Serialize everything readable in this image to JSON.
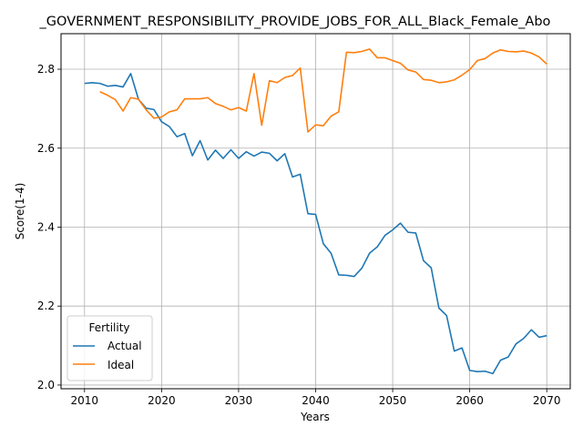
{
  "chart_data": {
    "type": "line",
    "title": "_GOVERNMENT_RESPONSIBILITY_PROVIDE_JOBS_FOR_ALL_Black_Female_Abo",
    "xlabel": "Years",
    "ylabel": "Score(1-4)",
    "xlim": [
      2006.95,
      2073.05
    ],
    "ylim": [
      1.9906,
      2.89
    ],
    "xticks": [
      2010,
      2020,
      2030,
      2040,
      2050,
      2060,
      2070
    ],
    "xtick_labels": [
      "2010",
      "2020",
      "2030",
      "2040",
      "2050",
      "2060",
      "2070"
    ],
    "yticks": [
      2.0,
      2.2,
      2.4,
      2.6,
      2.8
    ],
    "ytick_labels": [
      "2.0",
      "2.2",
      "2.4",
      "2.6",
      "2.8"
    ],
    "grid": true,
    "legend": {
      "title": "Fertility",
      "placement": "lower-left"
    },
    "series": [
      {
        "name": "Actual",
        "color": "#1f77b4",
        "x": [
          2010,
          2011,
          2012,
          2013,
          2014,
          2015,
          2016,
          2017,
          2018,
          2019,
          2020,
          2021,
          2022,
          2023,
          2024,
          2025,
          2026,
          2027,
          2028,
          2029,
          2030,
          2031,
          2032,
          2033,
          2034,
          2035,
          2036,
          2037,
          2038,
          2039,
          2040,
          2041,
          2042,
          2043,
          2044,
          2045,
          2046,
          2047,
          2048,
          2049,
          2050,
          2051,
          2052,
          2053,
          2054,
          2055,
          2056,
          2057,
          2058,
          2059,
          2060,
          2061,
          2062,
          2063,
          2064,
          2065,
          2066,
          2067,
          2068,
          2069,
          2070
        ],
        "values": [
          2.764,
          2.766,
          2.764,
          2.757,
          2.759,
          2.755,
          2.789,
          2.724,
          2.701,
          2.698,
          2.667,
          2.655,
          2.629,
          2.637,
          2.581,
          2.619,
          2.57,
          2.595,
          2.574,
          2.596,
          2.574,
          2.591,
          2.58,
          2.59,
          2.587,
          2.568,
          2.586,
          2.527,
          2.534,
          2.434,
          2.432,
          2.358,
          2.334,
          2.279,
          2.278,
          2.275,
          2.296,
          2.334,
          2.35,
          2.379,
          2.393,
          2.41,
          2.387,
          2.385,
          2.315,
          2.297,
          2.195,
          2.176,
          2.086,
          2.094,
          2.037,
          2.034,
          2.035,
          2.029,
          2.063,
          2.071,
          2.104,
          2.118,
          2.14,
          2.121,
          2.125
        ]
      },
      {
        "name": "Ideal",
        "color": "#ff7f0e",
        "x": [
          2012,
          2013,
          2014,
          2015,
          2016,
          2017,
          2018,
          2019,
          2020,
          2021,
          2022,
          2023,
          2024,
          2025,
          2026,
          2027,
          2028,
          2029,
          2030,
          2031,
          2032,
          2033,
          2034,
          2035,
          2036,
          2037,
          2038,
          2039,
          2040,
          2041,
          2042,
          2043,
          2044,
          2045,
          2046,
          2047,
          2048,
          2049,
          2050,
          2051,
          2052,
          2053,
          2054,
          2055,
          2056,
          2057,
          2058,
          2059,
          2060,
          2061,
          2062,
          2063,
          2064,
          2065,
          2066,
          2067,
          2068,
          2069,
          2070
        ],
        "values": [
          2.743,
          2.734,
          2.723,
          2.694,
          2.728,
          2.724,
          2.697,
          2.676,
          2.679,
          2.692,
          2.697,
          2.725,
          2.725,
          2.725,
          2.728,
          2.713,
          2.706,
          2.697,
          2.703,
          2.694,
          2.789,
          2.658,
          2.771,
          2.766,
          2.779,
          2.784,
          2.803,
          2.641,
          2.659,
          2.657,
          2.681,
          2.692,
          2.843,
          2.842,
          2.845,
          2.851,
          2.829,
          2.829,
          2.822,
          2.815,
          2.798,
          2.793,
          2.774,
          2.772,
          2.766,
          2.768,
          2.773,
          2.785,
          2.799,
          2.822,
          2.827,
          2.841,
          2.849,
          2.845,
          2.844,
          2.846,
          2.841,
          2.831,
          2.813
        ]
      }
    ]
  }
}
